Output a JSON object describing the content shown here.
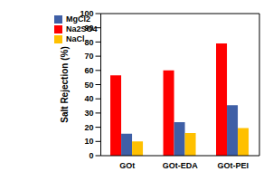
{
  "chart_data": {
    "type": "bar",
    "y_label": "Salt Rejection (%)",
    "categories": [
      "GOt",
      "GOt-EDA",
      "GOt-PEI"
    ],
    "series": [
      {
        "name": "Na2SO4",
        "color": "#ff0000",
        "values": [
          56.5,
          60,
          79
        ]
      },
      {
        "name": "MgCl2",
        "color": "#3f5fa6",
        "values": [
          15.5,
          23.5,
          35.5
        ]
      },
      {
        "name": "NaCl",
        "color": "#ffc000",
        "values": [
          10,
          16,
          19.5
        ]
      }
    ],
    "ylim": [
      0,
      100
    ],
    "yticks": [
      0,
      10,
      20,
      30,
      40,
      50,
      60,
      70,
      80,
      90,
      100
    ],
    "legend": "upper left",
    "grid": false
  }
}
